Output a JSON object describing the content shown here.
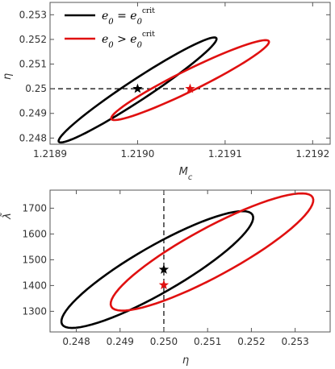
{
  "chart_data": [
    {
      "type": "scatter",
      "panel": "top",
      "xlabel": "M_c",
      "xlabel_display": "Mc",
      "ylabel": "η",
      "xlim": [
        1.2189,
        1.21922
      ],
      "ylim": [
        0.24775,
        0.2535
      ],
      "xticks": [
        1.2189,
        1.219,
        1.2191,
        1.2192
      ],
      "xtick_labels": [
        "1.2189",
        "1.2190",
        "1.2191",
        "1.2192"
      ],
      "yticks": [
        0.248,
        0.249,
        0.25,
        0.251,
        0.252,
        0.253
      ],
      "ytick_labels": [
        "0.248",
        "0.249",
        "0.25",
        "0.251",
        "0.252",
        "0.253"
      ],
      "reference_line": {
        "axis": "y",
        "value": 0.25,
        "style": "dashed"
      },
      "legend": {
        "placement": "top-left",
        "entries": [
          {
            "label": "e0 = e0crit",
            "color": "#000000"
          },
          {
            "label": "e0 > e0crit",
            "color": "#e01010"
          }
        ]
      },
      "series": [
        {
          "name": "e0 = e0crit",
          "color": "#000000",
          "ellipse": {
            "center": [
              1.219,
              0.24995
            ],
            "lower_left": [
              1.21891,
              0.24785
            ],
            "upper_right": [
              1.21909,
              0.25205
            ]
          },
          "marker": {
            "x": 1.219,
            "y": 0.25,
            "symbol": "star"
          }
        },
        {
          "name": "e0 > e0crit",
          "color": "#e01010",
          "ellipse": {
            "center": [
              1.21906,
              0.25035
            ],
            "lower_left": [
              1.21902,
              0.24965
            ],
            "upper_right": [
              1.2192,
              0.2528
            ]
          },
          "marker": {
            "x": 1.21906,
            "y": 0.25,
            "symbol": "star"
          }
        }
      ]
    },
    {
      "type": "scatter",
      "panel": "bottom",
      "xlabel": "η",
      "ylabel": "λ̃",
      "xlim": [
        0.2474,
        0.2538
      ],
      "ylim": [
        1220,
        1770
      ],
      "xticks": [
        0.248,
        0.249,
        0.25,
        0.251,
        0.252,
        0.253
      ],
      "xtick_labels": [
        "0.248",
        "0.249",
        "0.250",
        "0.251",
        "0.252",
        "0.253"
      ],
      "yticks": [
        1300,
        1400,
        1500,
        1600,
        1700
      ],
      "ytick_labels": [
        "1300",
        "1400",
        "1500",
        "1600",
        "1700"
      ],
      "reference_line": {
        "axis": "x",
        "value": 0.25,
        "style": "dashed"
      },
      "series": [
        {
          "name": "e0 = e0crit",
          "color": "#000000",
          "ellipse": {
            "center": [
              0.24985,
              1462
            ],
            "lower_left": [
              0.2477,
              1250
            ],
            "upper_right": [
              0.25205,
              1675
            ]
          },
          "marker": {
            "x": 0.25,
            "y": 1462,
            "symbol": "star"
          }
        },
        {
          "name": "e0 > e0crit",
          "color": "#e01010",
          "ellipse": {
            "center": [
              0.2511,
              1530
            ],
            "lower_left": [
              0.2491,
              1318
            ],
            "upper_right": [
              0.2537,
              1742
            ]
          },
          "marker": {
            "x": 0.25,
            "y": 1402,
            "symbol": "star"
          }
        }
      ]
    }
  ]
}
